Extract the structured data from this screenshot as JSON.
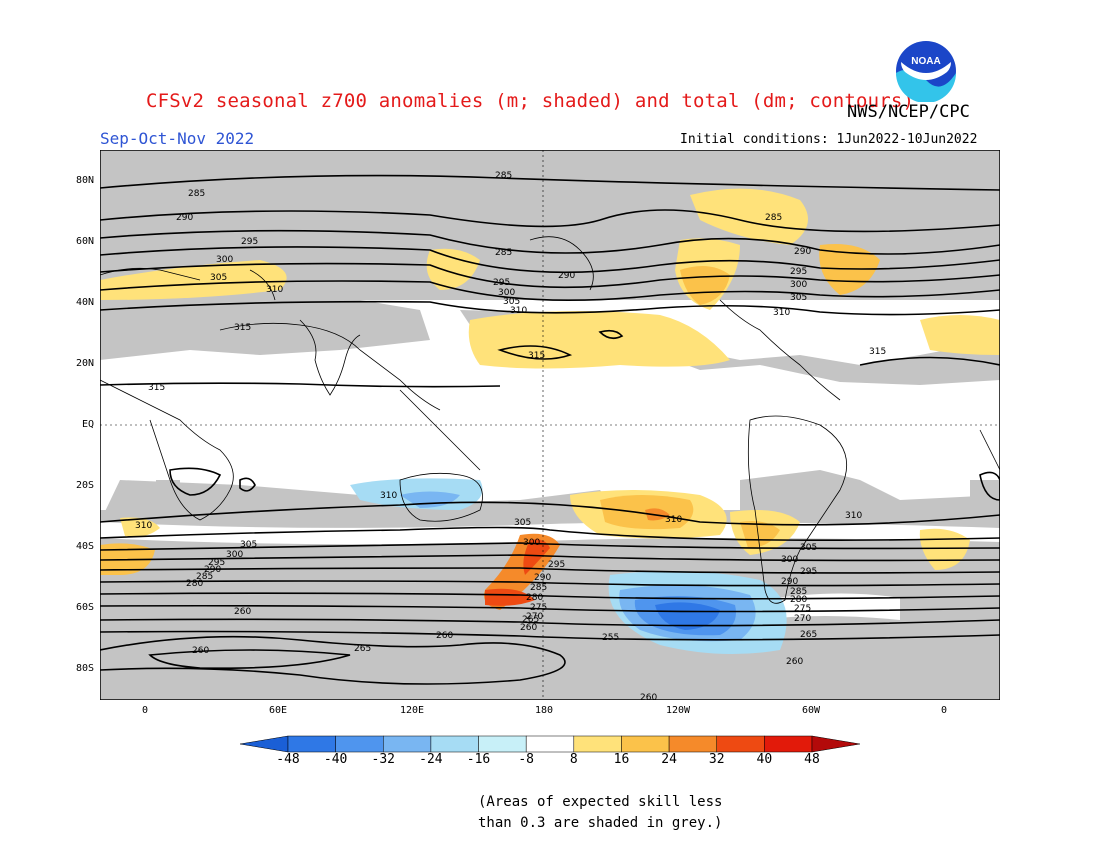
{
  "title": "CFSv2 seasonal z700 anomalies (m; shaded) and total (dm; contours)",
  "agency": "NWS/NCEP/CPC",
  "season": "Sep-Oct-Nov 2022",
  "initial_conditions": "Initial conditions: 1Jun2022-10Jun2022",
  "logo_text": "NOAA",
  "lat_labels": [
    "80N",
    "60N",
    "40N",
    "20N",
    "EQ",
    "20S",
    "40S",
    "60S",
    "80S"
  ],
  "lon_labels": [
    "0",
    "60E",
    "120E",
    "180",
    "120W",
    "60W",
    "0"
  ],
  "colorbar": {
    "labels": [
      "-48",
      "-40",
      "-32",
      "-24",
      "-16",
      "-8",
      "8",
      "16",
      "24",
      "32",
      "40",
      "48"
    ],
    "colors": [
      "#1a5fd6",
      "#2f78e6",
      "#4f95ee",
      "#79b6f2",
      "#a6dcf4",
      "#c8f0f8",
      "#ffffff",
      "#ffe27a",
      "#fbc24a",
      "#f58a2a",
      "#ee4a12",
      "#e21a0a",
      "#b30a0a"
    ]
  },
  "contour_labels": [
    "285",
    "290",
    "295",
    "300",
    "305",
    "310",
    "315",
    "310",
    "305",
    "300",
    "295",
    "290",
    "285",
    "280",
    "275",
    "270",
    "265",
    "260",
    "255"
  ],
  "note_line1": "(Areas of expected skill less",
  "note_line2": "than 0.3 are shaded in grey.)"
}
